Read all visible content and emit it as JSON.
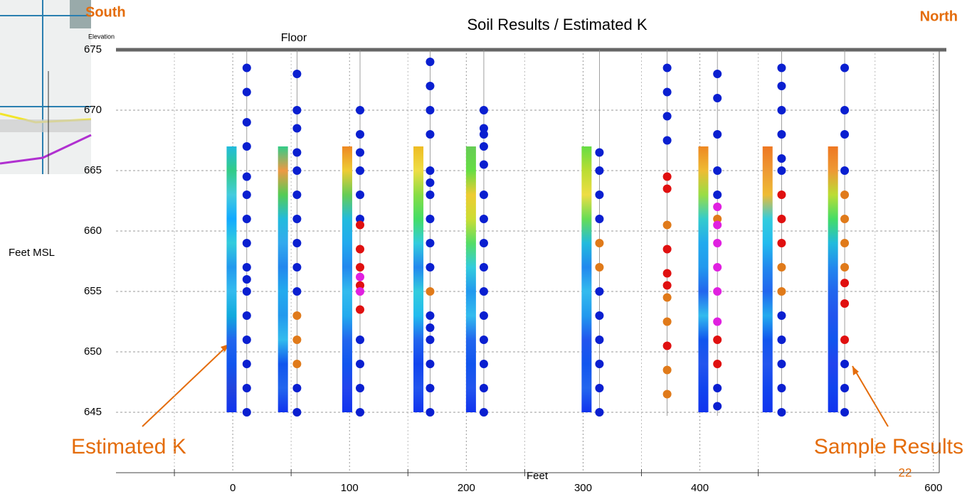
{
  "chart_data": {
    "type": "scatter",
    "title": "Soil Results / Estimated K",
    "left_label": "South",
    "right_label": "North",
    "floor_label": "Floor",
    "corner_label": "Elevation",
    "y_label": "Feet MSL",
    "x_label": "Feet",
    "page_number": "22",
    "annotations": [
      "Estimated K",
      "Sample Results"
    ],
    "xlim": [
      -100,
      605
    ],
    "ylim": [
      640,
      675
    ],
    "xticks": [
      0,
      100,
      200,
      300,
      400,
      600
    ],
    "xgrid": [
      -50,
      50,
      150,
      250,
      350,
      450,
      550
    ],
    "yticks": [
      645,
      650,
      655,
      660,
      665,
      670,
      675
    ],
    "grid": true,
    "floor": 675,
    "strips": [
      {
        "x": -1,
        "top": 667,
        "bottom": 645,
        "colors": [
          "#2bd",
          "#3c8",
          "#4cd",
          "#1af",
          "#3cd",
          "#29e",
          "#3be",
          "#1ad",
          "#26e",
          "#15e",
          "#24d",
          "#13e"
        ]
      },
      {
        "x": 43,
        "top": 667,
        "bottom": 645,
        "colors": [
          "#3c8",
          "#e94",
          "#5c5",
          "#2bd",
          "#3ae",
          "#28e",
          "#2ae",
          "#29e",
          "#3be",
          "#15e",
          "#26e",
          "#13e"
        ]
      },
      {
        "x": 98,
        "top": 667,
        "bottom": 645,
        "colors": [
          "#e82",
          "#ec3",
          "#6c5",
          "#2bd",
          "#2ae",
          "#28e",
          "#3be",
          "#2ae",
          "#26e",
          "#15e",
          "#24e",
          "#13e"
        ]
      },
      {
        "x": 159,
        "top": 667,
        "bottom": 645,
        "colors": [
          "#eb2",
          "#ed4",
          "#8d4",
          "#4d6",
          "#3cd",
          "#28e",
          "#3cd",
          "#2be",
          "#26e",
          "#14e",
          "#25e",
          "#13e"
        ]
      },
      {
        "x": 204,
        "top": 667,
        "bottom": 645,
        "colors": [
          "#6c5",
          "#6d4",
          "#ec3",
          "#cd3",
          "#5d6",
          "#3cd",
          "#29e",
          "#3be",
          "#26e",
          "#15e",
          "#25e",
          "#13e"
        ]
      },
      {
        "x": 303,
        "top": 667,
        "bottom": 645,
        "colors": [
          "#6d4",
          "#bd3",
          "#ed4",
          "#6d5",
          "#2bd",
          "#28e",
          "#3be",
          "#29e",
          "#25e",
          "#15e",
          "#26e",
          "#13e"
        ]
      },
      {
        "x": 403,
        "top": 667,
        "bottom": 645,
        "colors": [
          "#e82",
          "#eb3",
          "#9d4",
          "#3cc",
          "#2ae",
          "#29e",
          "#26e",
          "#3be",
          "#15e",
          "#25e",
          "#14e",
          "#13e"
        ]
      },
      {
        "x": 458,
        "top": 667,
        "bottom": 645,
        "colors": [
          "#e72",
          "#e93",
          "#eb3",
          "#3cd",
          "#2be",
          "#28e",
          "#26e",
          "#2ae",
          "#15e",
          "#25e",
          "#14e",
          "#13e"
        ]
      },
      {
        "x": 514,
        "top": 667,
        "bottom": 645,
        "colors": [
          "#e72",
          "#e93",
          "#bd3",
          "#4d6",
          "#2bd",
          "#28e",
          "#26e",
          "#25e",
          "#15e",
          "#24e",
          "#14e",
          "#13e"
        ]
      }
    ],
    "series": [
      {
        "x": 12,
        "values": [
          673.5,
          671.5,
          669,
          667,
          664.5,
          663,
          661,
          659,
          657,
          656,
          655,
          653,
          651,
          649,
          647,
          645
        ],
        "colors": [
          "#0a1fd0",
          "#0a1fd0",
          "#0a1fd0",
          "#0a1fd0",
          "#0a1fd0",
          "#0a1fd0",
          "#0a1fd0",
          "#0a1fd0",
          "#0a1fd0",
          "#0a1fd0",
          "#0a1fd0",
          "#0a1fd0",
          "#0a1fd0",
          "#0a1fd0",
          "#0a1fd0",
          "#0a1fd0"
        ]
      },
      {
        "x": 55,
        "values": [
          673,
          670,
          668.5,
          666.5,
          665,
          663,
          661,
          659,
          657,
          655,
          653,
          651,
          649,
          647,
          645
        ],
        "colors": [
          "#0a1fd0",
          "#0a1fd0",
          "#0a1fd0",
          "#0a1fd0",
          "#0a1fd0",
          "#0a1fd0",
          "#0a1fd0",
          "#0a1fd0",
          "#0a1fd0",
          "#0a1fd0",
          "#e07a1a",
          "#e07a1a",
          "#e07a1a",
          "#0a1fd0",
          "#0a1fd0"
        ]
      },
      {
        "x": 109,
        "values": [
          670,
          668,
          666.5,
          665,
          663,
          661,
          660.5,
          658.5,
          657,
          656.2,
          655.5,
          655,
          653.5,
          651,
          649,
          647,
          645
        ],
        "colors": [
          "#0a1fd0",
          "#0a1fd0",
          "#0a1fd0",
          "#0a1fd0",
          "#0a1fd0",
          "#0a1fd0",
          "#e01010",
          "#e01010",
          "#e01010",
          "#e020e0",
          "#e01010",
          "#e020e0",
          "#e01010",
          "#0a1fd0",
          "#0a1fd0",
          "#0a1fd0",
          "#0a1fd0"
        ]
      },
      {
        "x": 169,
        "values": [
          674,
          672,
          670,
          668,
          665,
          664,
          663,
          661,
          659,
          657,
          655,
          653,
          652,
          651,
          649,
          647,
          645
        ],
        "colors": [
          "#0a1fd0",
          "#0a1fd0",
          "#0a1fd0",
          "#0a1fd0",
          "#0a1fd0",
          "#0a1fd0",
          "#0a1fd0",
          "#0a1fd0",
          "#0a1fd0",
          "#0a1fd0",
          "#e07a1a",
          "#0a1fd0",
          "#0a1fd0",
          "#0a1fd0",
          "#0a1fd0",
          "#0a1fd0",
          "#0a1fd0"
        ]
      },
      {
        "x": 215,
        "values": [
          670,
          668.5,
          668,
          667,
          665.5,
          663,
          661,
          659,
          657,
          655,
          653,
          651,
          649,
          647,
          645
        ],
        "colors": [
          "#0a1fd0",
          "#0a1fd0",
          "#0a1fd0",
          "#0a1fd0",
          "#0a1fd0",
          "#0a1fd0",
          "#0a1fd0",
          "#0a1fd0",
          "#0a1fd0",
          "#0a1fd0",
          "#0a1fd0",
          "#0a1fd0",
          "#0a1fd0",
          "#0a1fd0",
          "#0a1fd0"
        ]
      },
      {
        "x": 314,
        "values": [
          666.5,
          665,
          663,
          661,
          659,
          657,
          655,
          653,
          651,
          649,
          647,
          645
        ],
        "colors": [
          "#0a1fd0",
          "#0a1fd0",
          "#0a1fd0",
          "#0a1fd0",
          "#e07a1a",
          "#e07a1a",
          "#0a1fd0",
          "#0a1fd0",
          "#0a1fd0",
          "#0a1fd0",
          "#0a1fd0",
          "#0a1fd0"
        ]
      },
      {
        "x": 372,
        "values": [
          673.5,
          671.5,
          669.5,
          667.5,
          664.5,
          663.5,
          660.5,
          658.5,
          656.5,
          655.5,
          654.5,
          652.5,
          650.5,
          648.5,
          646.5
        ],
        "colors": [
          "#0a1fd0",
          "#0a1fd0",
          "#0a1fd0",
          "#0a1fd0",
          "#e01010",
          "#e01010",
          "#e07a1a",
          "#e01010",
          "#e01010",
          "#e01010",
          "#e07a1a",
          "#e07a1a",
          "#e01010",
          "#e07a1a",
          "#e07a1a"
        ]
      },
      {
        "x": 415,
        "values": [
          673,
          671,
          668,
          665,
          663,
          662,
          661,
          660.5,
          659,
          657,
          655,
          652.5,
          651,
          649,
          647,
          645.5
        ],
        "colors": [
          "#0a1fd0",
          "#0a1fd0",
          "#0a1fd0",
          "#0a1fd0",
          "#0a1fd0",
          "#e020e0",
          "#e07a1a",
          "#e020e0",
          "#e020e0",
          "#e020e0",
          "#e020e0",
          "#e020e0",
          "#e01010",
          "#e01010",
          "#0a1fd0",
          "#0a1fd0"
        ]
      },
      {
        "x": 470,
        "values": [
          673.5,
          672,
          670,
          668,
          666,
          665,
          663,
          661,
          659,
          657,
          655,
          653,
          651,
          649,
          647,
          645
        ],
        "colors": [
          "#0a1fd0",
          "#0a1fd0",
          "#0a1fd0",
          "#0a1fd0",
          "#0a1fd0",
          "#0a1fd0",
          "#e01010",
          "#e01010",
          "#e01010",
          "#e07a1a",
          "#e07a1a",
          "#0a1fd0",
          "#0a1fd0",
          "#0a1fd0",
          "#0a1fd0",
          "#0a1fd0"
        ]
      },
      {
        "x": 524,
        "values": [
          673.5,
          670,
          668,
          665,
          663,
          661,
          659,
          657,
          655.7,
          654,
          651,
          649,
          647,
          645
        ],
        "colors": [
          "#0a1fd0",
          "#0a1fd0",
          "#0a1fd0",
          "#0a1fd0",
          "#e07a1a",
          "#e07a1a",
          "#e07a1a",
          "#e07a1a",
          "#e01010",
          "#e01010",
          "#e01010",
          "#0a1fd0",
          "#0a1fd0",
          "#0a1fd0"
        ]
      }
    ]
  }
}
